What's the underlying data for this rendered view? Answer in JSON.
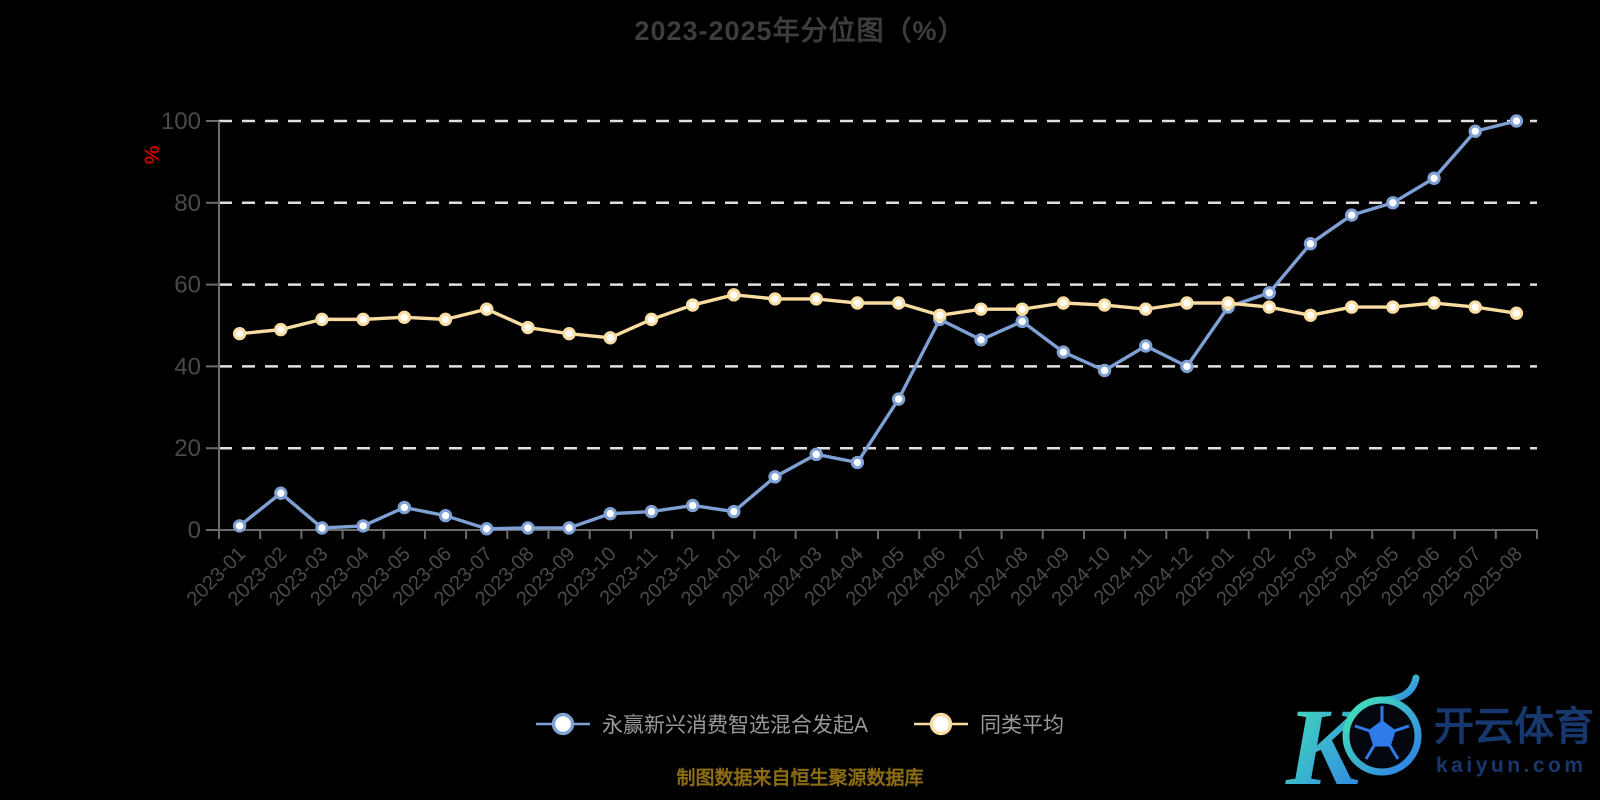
{
  "title": "2023-2025年分位图（%）",
  "source_note": "制图数据来自恒生聚源数据库",
  "watermark": {
    "brand": "开云体育",
    "domain": "kaiyun.com"
  },
  "colors": {
    "background": "#000000",
    "title": "#3D3D3D",
    "axis-label": "#4A4A4A",
    "axis-line": "#6B6B6B",
    "grid": "#E0E0E0",
    "legend-text": "#999999",
    "note": "#8D6C12",
    "unit": "#C40000",
    "logo-text": "#16386F",
    "logo-gradient-start": "#45E6B4",
    "logo-gradient-end": "#2E7BEA"
  },
  "chart_data": {
    "type": "line",
    "title": "2023-2025年分位图（%）",
    "y_axis": {
      "name": "%",
      "ticks": [
        0,
        20,
        40,
        60,
        80,
        100
      ]
    },
    "ylim": [
      0,
      100
    ],
    "grid": "horizontal-dashed-white",
    "legend_position": "bottom-center",
    "x": [
      "2023-01",
      "2023-02",
      "2023-03",
      "2023-04",
      "2023-05",
      "2023-06",
      "2023-07",
      "2023-08",
      "2023-09",
      "2023-10",
      "2023-11",
      "2023-12",
      "2024-01",
      "2024-02",
      "2024-03",
      "2024-04",
      "2024-05",
      "2024-06",
      "2024-07",
      "2024-08",
      "2024-09",
      "2024-10",
      "2024-11",
      "2024-12",
      "2025-01",
      "2025-02",
      "2025-03",
      "2025-04",
      "2025-05",
      "2025-06",
      "2025-07",
      "2025-08"
    ],
    "series": [
      {
        "name": "永赢新兴消费智选混合发起A",
        "color": "#7FA0D4",
        "marker_fill": "#FFFFFF",
        "values": [
          1,
          9,
          0.5,
          1,
          5.5,
          3.5,
          0.3,
          0.5,
          0.5,
          4,
          4.5,
          6,
          4.5,
          13,
          18.5,
          16.5,
          32,
          51.5,
          46.5,
          51,
          43.5,
          39,
          45,
          40,
          54.5,
          58,
          70,
          77,
          80,
          86,
          97.5,
          100
        ]
      },
      {
        "name": "同类平均",
        "color": "#F8DCA0",
        "marker_fill": "#FFFFFF",
        "values": [
          48,
          49,
          51.5,
          51.5,
          52,
          51.5,
          54,
          49.5,
          48,
          47,
          51.5,
          55,
          57.5,
          56.5,
          56.5,
          55.5,
          55.5,
          52.5,
          54,
          54,
          55.5,
          55,
          54,
          55.5,
          55.5,
          54.5,
          52.5,
          54.5,
          54.5,
          55.5,
          54.5,
          53
        ]
      }
    ]
  }
}
